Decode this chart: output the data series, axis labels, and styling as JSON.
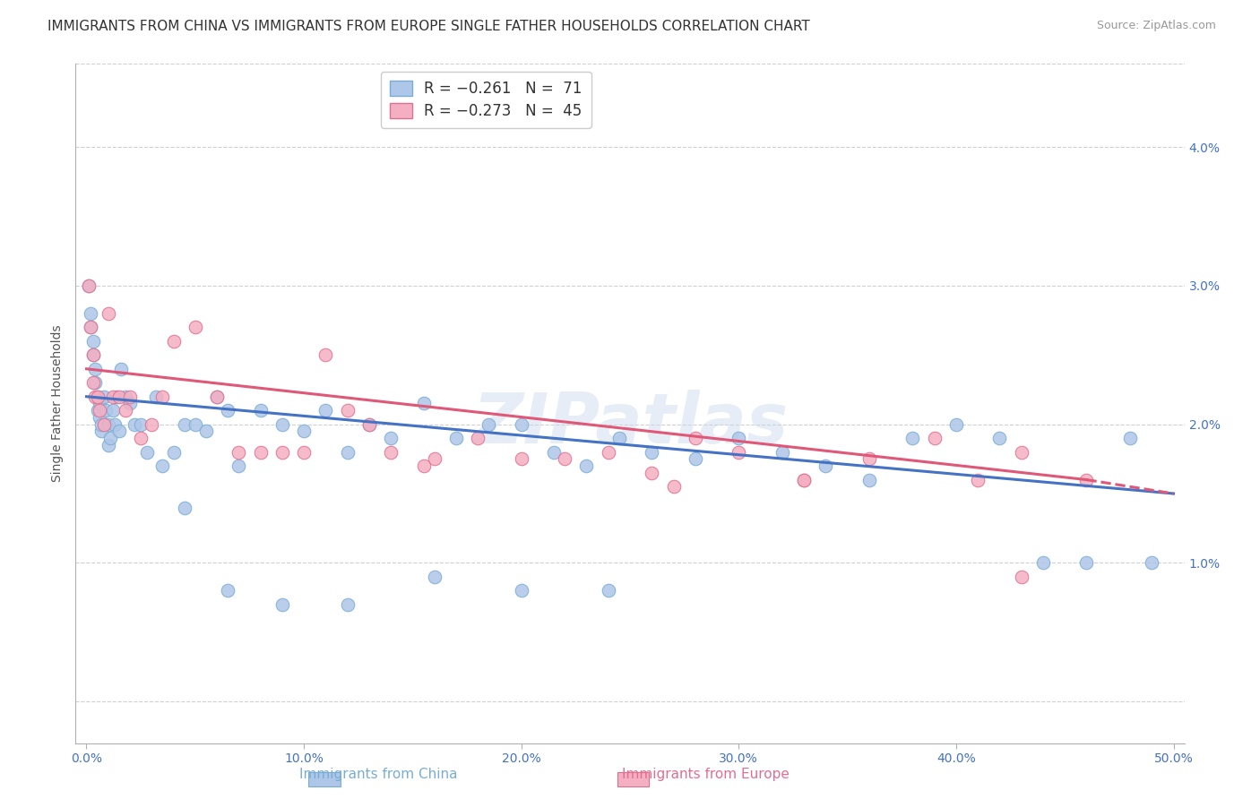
{
  "title": "IMMIGRANTS FROM CHINA VS IMMIGRANTS FROM EUROPE SINGLE FATHER HOUSEHOLDS CORRELATION CHART",
  "source": "Source: ZipAtlas.com",
  "ylabel": "Single Father Households",
  "x_ticks": [
    0.0,
    0.1,
    0.2,
    0.3,
    0.4,
    0.5
  ],
  "x_tick_labels": [
    "0.0%",
    "10.0%",
    "20.0%",
    "30.0%",
    "40.0%",
    "50.0%"
  ],
  "y_ticks": [
    0.0,
    0.01,
    0.02,
    0.03,
    0.04
  ],
  "y_tick_labels": [
    "",
    "1.0%",
    "2.0%",
    "3.0%",
    "4.0%"
  ],
  "xlim": [
    -0.005,
    0.505
  ],
  "ylim": [
    -0.003,
    0.046
  ],
  "china_color": "#aec6e8",
  "europe_color": "#f4afc2",
  "china_edge": "#7aadd4",
  "europe_edge": "#e07090",
  "trendline_china_color": "#4472c4",
  "trendline_europe_color": "#e05878",
  "legend_china_label": "R = −0.261   N =  71",
  "legend_europe_label": "R = −0.273   N =  45",
  "watermark": "ZIPatlas",
  "china_x": [
    0.001,
    0.002,
    0.002,
    0.003,
    0.003,
    0.004,
    0.004,
    0.005,
    0.005,
    0.006,
    0.006,
    0.007,
    0.007,
    0.008,
    0.009,
    0.01,
    0.01,
    0.011,
    0.012,
    0.013,
    0.014,
    0.015,
    0.016,
    0.018,
    0.02,
    0.022,
    0.025,
    0.028,
    0.032,
    0.035,
    0.04,
    0.045,
    0.05,
    0.055,
    0.06,
    0.065,
    0.07,
    0.08,
    0.09,
    0.1,
    0.11,
    0.12,
    0.13,
    0.14,
    0.155,
    0.17,
    0.185,
    0.2,
    0.215,
    0.23,
    0.245,
    0.26,
    0.28,
    0.3,
    0.32,
    0.34,
    0.36,
    0.38,
    0.4,
    0.42,
    0.44,
    0.46,
    0.48,
    0.49,
    0.045,
    0.065,
    0.09,
    0.12,
    0.16,
    0.2,
    0.24
  ],
  "china_y": [
    0.03,
    0.028,
    0.027,
    0.026,
    0.025,
    0.024,
    0.023,
    0.022,
    0.021,
    0.0205,
    0.0215,
    0.0195,
    0.02,
    0.022,
    0.021,
    0.02,
    0.0185,
    0.019,
    0.021,
    0.02,
    0.022,
    0.0195,
    0.024,
    0.022,
    0.0215,
    0.02,
    0.02,
    0.018,
    0.022,
    0.017,
    0.018,
    0.02,
    0.02,
    0.0195,
    0.022,
    0.021,
    0.017,
    0.021,
    0.02,
    0.0195,
    0.021,
    0.018,
    0.02,
    0.019,
    0.0215,
    0.019,
    0.02,
    0.02,
    0.018,
    0.017,
    0.019,
    0.018,
    0.0175,
    0.019,
    0.018,
    0.017,
    0.016,
    0.019,
    0.02,
    0.019,
    0.01,
    0.01,
    0.019,
    0.01,
    0.014,
    0.008,
    0.007,
    0.007,
    0.009,
    0.008,
    0.008
  ],
  "europe_x": [
    0.001,
    0.002,
    0.003,
    0.003,
    0.004,
    0.005,
    0.006,
    0.008,
    0.01,
    0.012,
    0.015,
    0.018,
    0.02,
    0.025,
    0.03,
    0.035,
    0.04,
    0.05,
    0.06,
    0.07,
    0.08,
    0.09,
    0.1,
    0.11,
    0.12,
    0.13,
    0.14,
    0.16,
    0.18,
    0.2,
    0.22,
    0.24,
    0.26,
    0.28,
    0.3,
    0.33,
    0.36,
    0.39,
    0.41,
    0.43,
    0.46,
    0.27,
    0.155,
    0.33,
    0.43
  ],
  "europe_y": [
    0.03,
    0.027,
    0.025,
    0.023,
    0.022,
    0.022,
    0.021,
    0.02,
    0.028,
    0.022,
    0.022,
    0.021,
    0.022,
    0.019,
    0.02,
    0.022,
    0.026,
    0.027,
    0.022,
    0.018,
    0.018,
    0.018,
    0.018,
    0.025,
    0.021,
    0.02,
    0.018,
    0.0175,
    0.019,
    0.0175,
    0.0175,
    0.018,
    0.0165,
    0.019,
    0.018,
    0.016,
    0.0175,
    0.019,
    0.016,
    0.018,
    0.016,
    0.0155,
    0.017,
    0.016,
    0.009
  ],
  "background_color": "#ffffff",
  "grid_color": "#d0d0d0",
  "axis_color": "#b0b0b0",
  "tick_color": "#4472c4",
  "title_fontsize": 11,
  "axis_label_fontsize": 10,
  "tick_fontsize": 10,
  "marker_size": 110,
  "bottom_legend_china": "Immigrants from China",
  "bottom_legend_europe": "Immigrants from Europe"
}
